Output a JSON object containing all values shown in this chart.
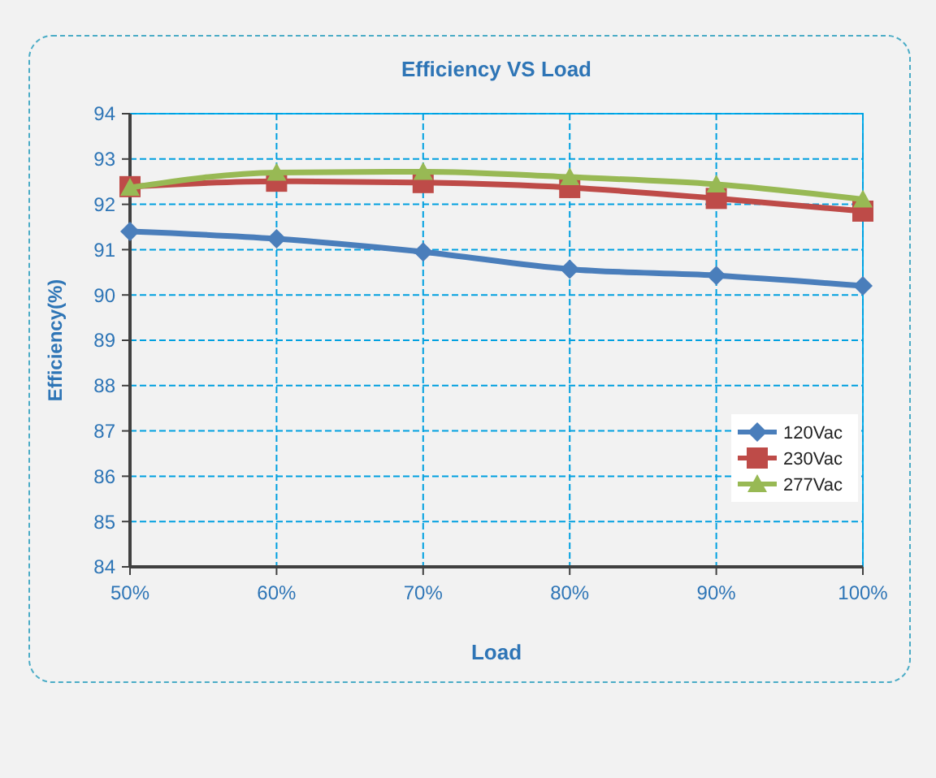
{
  "chart_data": {
    "type": "line",
    "title": "Efficiency VS  Load",
    "xlabel": "Load",
    "ylabel": "Efficiency(%)",
    "categories": [
      "50%",
      "60%",
      "70%",
      "80%",
      "90%",
      "100%"
    ],
    "series": [
      {
        "name": "120Vac",
        "color": "#4a7ebb",
        "marker": "diamond",
        "values": [
          91.4,
          91.24,
          90.95,
          90.57,
          90.43,
          90.2
        ]
      },
      {
        "name": "230Vac",
        "color": "#be4b48",
        "marker": "square",
        "values": [
          92.39,
          92.51,
          92.48,
          92.37,
          92.13,
          91.85
        ]
      },
      {
        "name": "277Vac",
        "color": "#98b954",
        "marker": "triangle",
        "values": [
          92.37,
          92.7,
          92.72,
          92.6,
          92.44,
          92.11
        ]
      }
    ],
    "ylim": [
      84,
      94
    ],
    "yticks": [
      84,
      85,
      86,
      87,
      88,
      89,
      90,
      91,
      92,
      93,
      94
    ],
    "grid": true,
    "legend": "bottom right",
    "line_style": "solid"
  }
}
